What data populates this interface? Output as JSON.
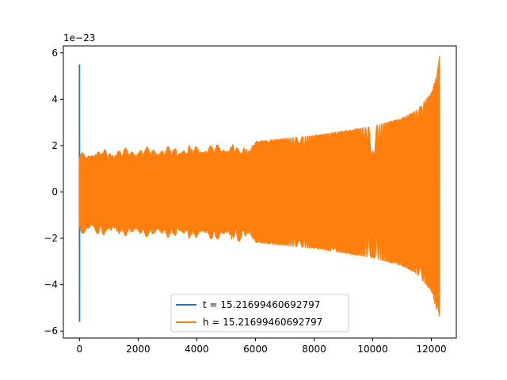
{
  "chart_data": {
    "type": "line",
    "title": "",
    "xlabel": "",
    "ylabel": "",
    "y_offset_text": "1e−23",
    "xlim": [
      -550,
      12850
    ],
    "ylim": [
      -6.3,
      6.3
    ],
    "x_ticks": [
      0,
      2000,
      4000,
      6000,
      8000,
      10000,
      12000
    ],
    "x_tick_labels": [
      "0",
      "2000",
      "4000",
      "6000",
      "8000",
      "10000",
      "12000"
    ],
    "y_ticks": [
      -6,
      -4,
      -2,
      0,
      2,
      4,
      6
    ],
    "y_tick_labels": [
      "−6",
      "−4",
      "−2",
      "0",
      "2",
      "4",
      "6"
    ],
    "grid": false,
    "legend_position": "lower center",
    "series": [
      {
        "name": "t = 15.21699460692797",
        "color": "#1f77b4",
        "description": "brief oscillation near x=0",
        "x": [
          0,
          0,
          0,
          0
        ],
        "y": [
          5.5,
          -5.6,
          1.2,
          -0.6
        ]
      },
      {
        "name": "h = 15.21699460692797",
        "color": "#ff7f0e",
        "description": "chirp oscillation with growing envelope",
        "envelope_x": [
          0,
          2000,
          4000,
          6000,
          8000,
          10000,
          11000,
          11500,
          12000,
          12200,
          12280
        ],
        "envelope_y": [
          1.85,
          1.95,
          2.05,
          2.2,
          2.45,
          2.85,
          3.2,
          3.55,
          4.3,
          5.2,
          5.9
        ]
      }
    ]
  }
}
